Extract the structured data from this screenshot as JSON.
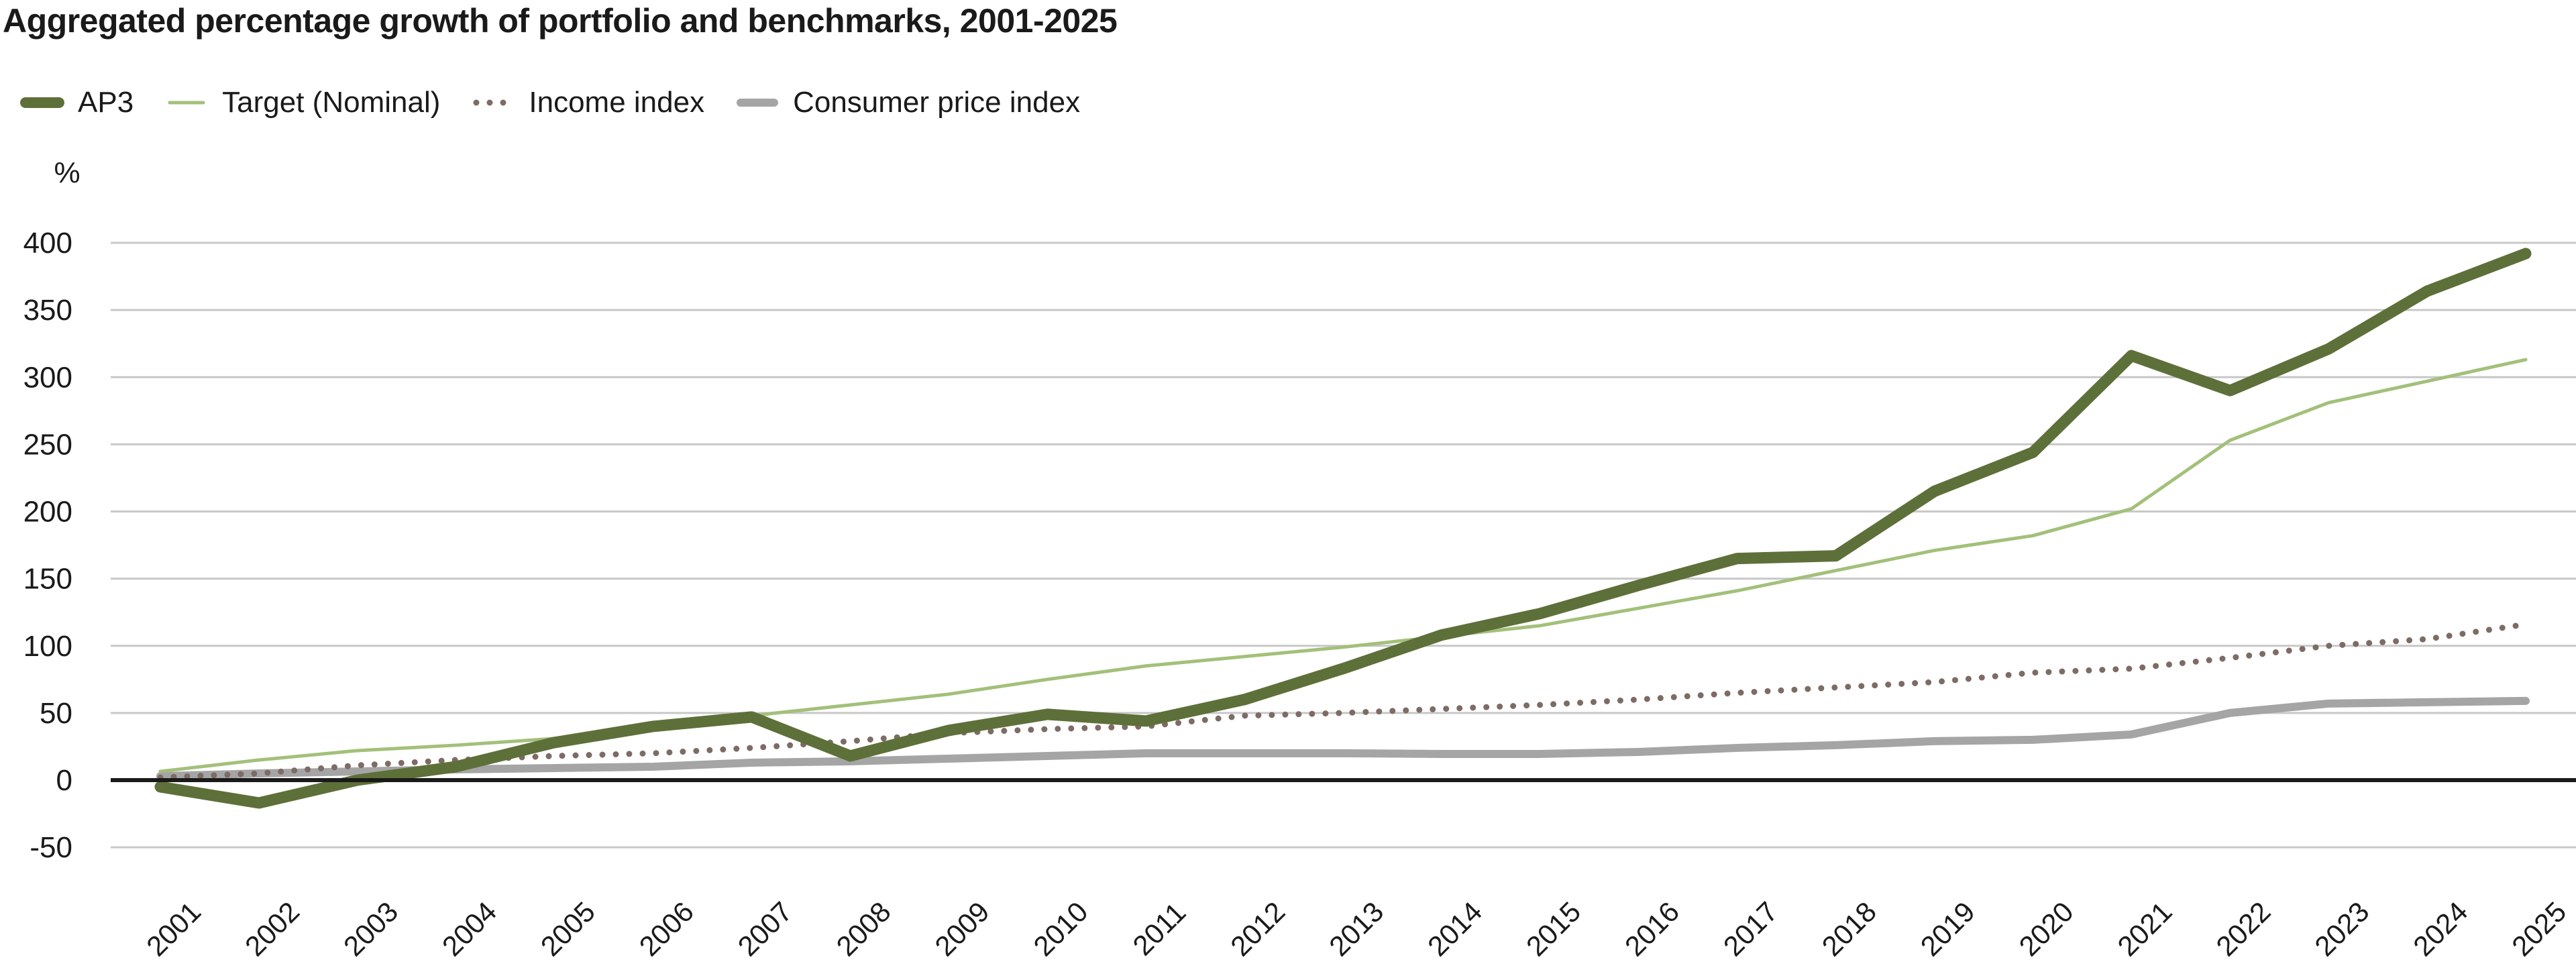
{
  "chart_data": {
    "type": "line",
    "title": "Aggregated percentage growth of portfolio and benchmarks, 2001-2025",
    "ylabel": "%",
    "xlabel": "",
    "ylim": [
      -50,
      400
    ],
    "yticks": [
      -50,
      0,
      50,
      100,
      150,
      200,
      250,
      300,
      350,
      400
    ],
    "grid": true,
    "legend_position": "top-left",
    "categories": [
      "2001",
      "2002",
      "2003",
      "2004",
      "2005",
      "2006",
      "2007",
      "2008",
      "2009",
      "2010",
      "2011",
      "2012",
      "2013",
      "2014",
      "2015",
      "2016",
      "2017",
      "2018",
      "2019",
      "2020",
      "2021",
      "2022",
      "2023",
      "2024",
      "2025"
    ],
    "series": [
      {
        "name": "AP3",
        "color": "#5e7039",
        "style": "thick",
        "values": [
          -5,
          -17,
          0,
          10,
          28,
          40,
          47,
          18,
          37,
          49,
          44,
          60,
          83,
          108,
          124,
          145,
          165,
          167,
          215,
          244,
          316,
          290,
          321,
          364,
          392
        ]
      },
      {
        "name": "Target (Nominal)",
        "color": "#a3c07a",
        "style": "thin",
        "values": [
          6.5,
          15,
          22,
          26,
          31,
          39,
          48,
          56,
          64,
          75,
          85,
          92,
          99,
          107,
          115,
          128,
          141,
          156,
          171,
          182,
          202,
          253,
          281,
          297,
          313
        ]
      },
      {
        "name": "Income index",
        "color": "#7d6b66",
        "style": "dotted",
        "values": [
          2,
          5,
          11,
          15,
          18,
          20,
          24,
          29,
          35,
          38,
          40,
          48,
          50,
          53,
          56,
          60,
          65,
          69,
          73,
          80,
          83,
          91,
          100,
          105,
          116
        ]
      },
      {
        "name": "Consumer price index",
        "color": "#a5a5a5",
        "style": "medium",
        "values": [
          3,
          5,
          6.5,
          8,
          9,
          10,
          13,
          14,
          16,
          18,
          20,
          20,
          20,
          19.5,
          19.5,
          21,
          24,
          26,
          29,
          30,
          34,
          50,
          57,
          58,
          59
        ]
      }
    ]
  }
}
